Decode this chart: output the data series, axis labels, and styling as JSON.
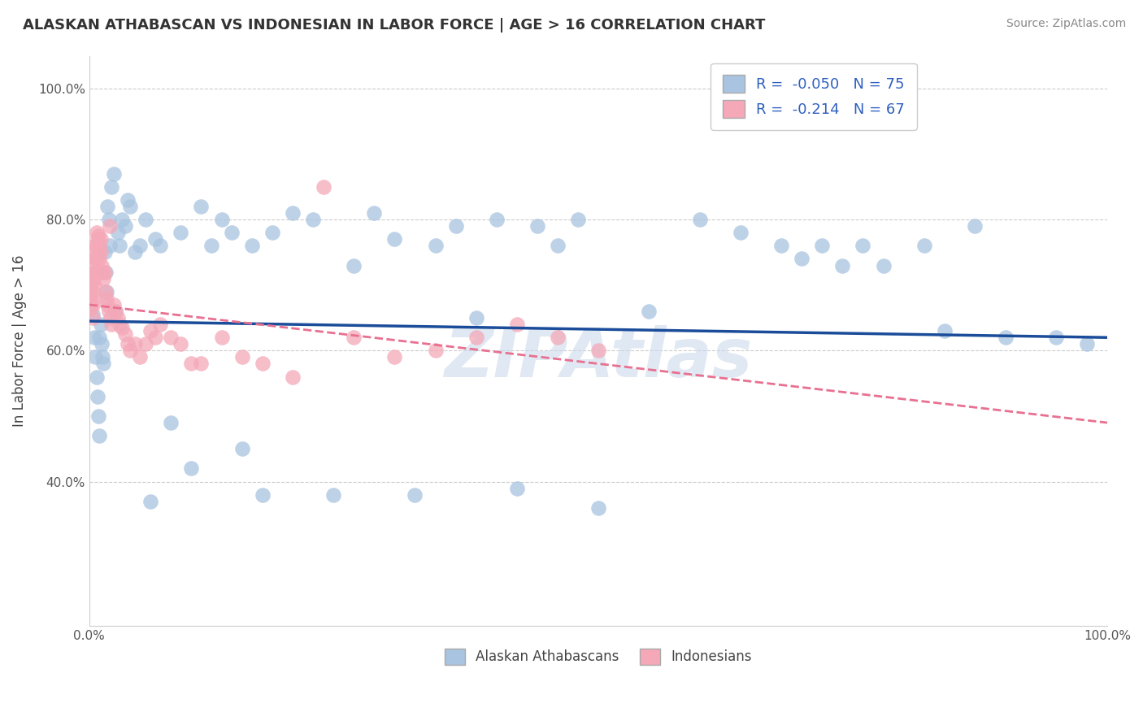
{
  "title": "ALASKAN ATHABASCAN VS INDONESIAN IN LABOR FORCE | AGE > 16 CORRELATION CHART",
  "source": "Source: ZipAtlas.com",
  "ylabel": "In Labor Force | Age > 16",
  "xlim": [
    0,
    1.0
  ],
  "ylim": [
    0.18,
    1.05
  ],
  "yticks": [
    0.4,
    0.6,
    0.8,
    1.0
  ],
  "yticklabels": [
    "40.0%",
    "60.0%",
    "80.0%",
    "100.0%"
  ],
  "blue_R": -0.05,
  "blue_N": 75,
  "pink_R": -0.214,
  "pink_N": 67,
  "blue_color": "#a8c4e0",
  "pink_color": "#f4a8b8",
  "blue_line_color": "#1a4c9a",
  "pink_line_color": "#e87090",
  "legend_label_blue": "Alaskan Athabascans",
  "legend_label_pink": "Indonesians",
  "watermark": "ZIPAtlas",
  "blue_scatter_x": [
    0.003,
    0.005,
    0.006,
    0.007,
    0.008,
    0.009,
    0.01,
    0.01,
    0.011,
    0.012,
    0.013,
    0.014,
    0.015,
    0.016,
    0.017,
    0.018,
    0.019,
    0.02,
    0.022,
    0.024,
    0.026,
    0.028,
    0.03,
    0.032,
    0.035,
    0.038,
    0.04,
    0.045,
    0.05,
    0.055,
    0.06,
    0.065,
    0.07,
    0.08,
    0.09,
    0.1,
    0.11,
    0.12,
    0.13,
    0.14,
    0.15,
    0.16,
    0.17,
    0.18,
    0.2,
    0.22,
    0.24,
    0.26,
    0.28,
    0.3,
    0.32,
    0.34,
    0.36,
    0.38,
    0.4,
    0.42,
    0.44,
    0.46,
    0.48,
    0.5,
    0.55,
    0.6,
    0.64,
    0.68,
    0.7,
    0.72,
    0.74,
    0.76,
    0.78,
    0.82,
    0.84,
    0.87,
    0.9,
    0.95,
    0.98
  ],
  "blue_scatter_y": [
    0.655,
    0.62,
    0.59,
    0.56,
    0.53,
    0.5,
    0.47,
    0.62,
    0.64,
    0.61,
    0.59,
    0.58,
    0.75,
    0.72,
    0.69,
    0.82,
    0.8,
    0.76,
    0.85,
    0.87,
    0.66,
    0.78,
    0.76,
    0.8,
    0.79,
    0.83,
    0.82,
    0.75,
    0.76,
    0.8,
    0.37,
    0.77,
    0.76,
    0.49,
    0.78,
    0.42,
    0.82,
    0.76,
    0.8,
    0.78,
    0.45,
    0.76,
    0.38,
    0.78,
    0.81,
    0.8,
    0.38,
    0.73,
    0.81,
    0.77,
    0.38,
    0.76,
    0.79,
    0.65,
    0.8,
    0.39,
    0.79,
    0.76,
    0.8,
    0.36,
    0.66,
    0.8,
    0.78,
    0.76,
    0.74,
    0.76,
    0.73,
    0.76,
    0.73,
    0.76,
    0.63,
    0.79,
    0.62,
    0.62,
    0.61
  ],
  "pink_scatter_x": [
    0.001,
    0.002,
    0.002,
    0.003,
    0.003,
    0.003,
    0.004,
    0.004,
    0.004,
    0.005,
    0.005,
    0.005,
    0.006,
    0.006,
    0.006,
    0.007,
    0.007,
    0.007,
    0.008,
    0.008,
    0.009,
    0.009,
    0.01,
    0.01,
    0.011,
    0.011,
    0.012,
    0.013,
    0.014,
    0.015,
    0.016,
    0.017,
    0.018,
    0.019,
    0.02,
    0.021,
    0.022,
    0.024,
    0.026,
    0.028,
    0.03,
    0.032,
    0.035,
    0.038,
    0.04,
    0.045,
    0.05,
    0.055,
    0.06,
    0.065,
    0.07,
    0.08,
    0.09,
    0.1,
    0.11,
    0.13,
    0.15,
    0.17,
    0.2,
    0.23,
    0.26,
    0.3,
    0.34,
    0.38,
    0.42,
    0.46,
    0.5
  ],
  "pink_scatter_y": [
    0.68,
    0.665,
    0.7,
    0.69,
    0.67,
    0.65,
    0.75,
    0.73,
    0.71,
    0.72,
    0.7,
    0.68,
    0.76,
    0.74,
    0.72,
    0.78,
    0.76,
    0.74,
    0.77,
    0.755,
    0.775,
    0.755,
    0.76,
    0.74,
    0.77,
    0.75,
    0.73,
    0.72,
    0.71,
    0.72,
    0.69,
    0.68,
    0.67,
    0.66,
    0.79,
    0.65,
    0.64,
    0.67,
    0.66,
    0.65,
    0.64,
    0.635,
    0.625,
    0.61,
    0.6,
    0.61,
    0.59,
    0.61,
    0.63,
    0.62,
    0.64,
    0.62,
    0.61,
    0.58,
    0.58,
    0.62,
    0.59,
    0.58,
    0.56,
    0.85,
    0.62,
    0.59,
    0.6,
    0.62,
    0.64,
    0.62,
    0.6
  ],
  "blue_trend_x0": 0.0,
  "blue_trend_y0": 0.645,
  "blue_trend_x1": 1.0,
  "blue_trend_y1": 0.62,
  "pink_trend_x0": 0.0,
  "pink_trend_y0": 0.67,
  "pink_trend_x1": 1.0,
  "pink_trend_y1": 0.49
}
